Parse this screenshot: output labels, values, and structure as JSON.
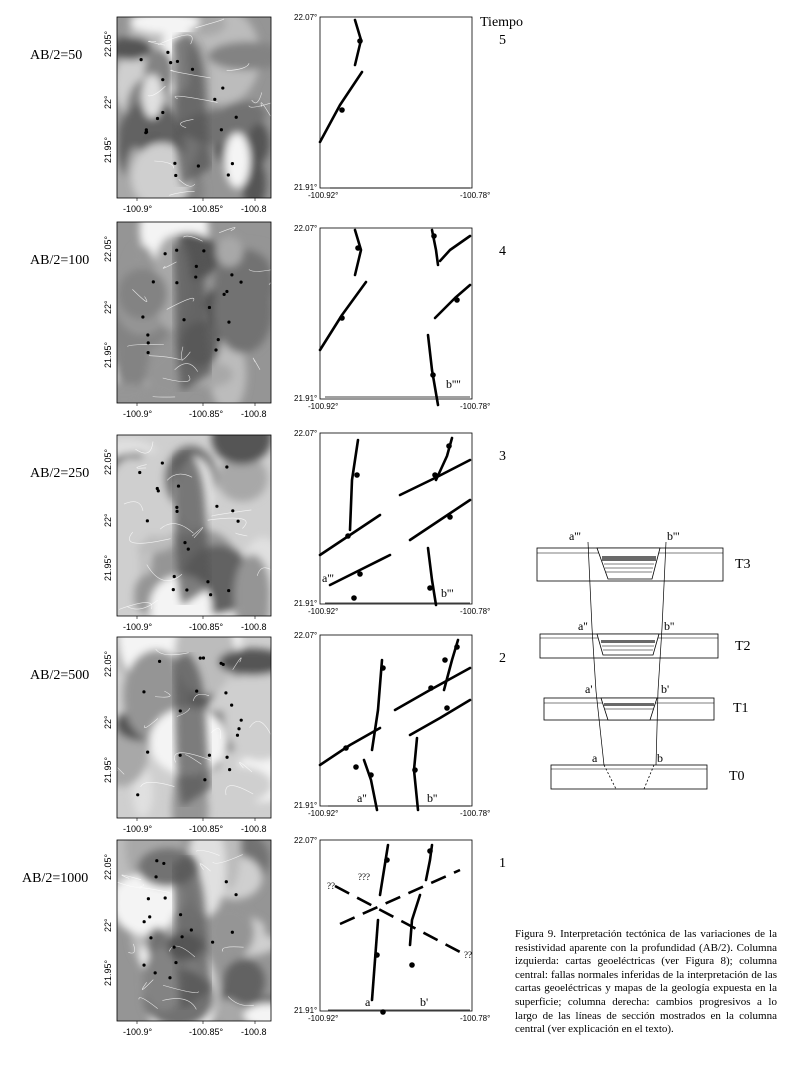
{
  "tiempo_label": "Tiempo",
  "ab_labels": [
    "AB/2=50",
    "AB/2=100",
    "AB/2=250",
    "AB/2=500",
    "AB/2=1000"
  ],
  "time_numbers": [
    "5",
    "4",
    "3",
    "2",
    "1"
  ],
  "map_axes": {
    "x_ticks": [
      "-100.9°",
      "-100.85°",
      "-100.8"
    ],
    "y_ticks": [
      "22.05°",
      "22°",
      "21.95°"
    ]
  },
  "fault_axes": {
    "lat_top": "22.07°",
    "lat_bottom": "21.91°",
    "lon_left": "-100.92°",
    "lon_right": "-100.78°"
  },
  "fault_panel_labels": {
    "panel_4_b": "b''''",
    "panel_3_a": "a'''",
    "panel_3_b": "b'''",
    "panel_2_a": "a''",
    "panel_2_b": "b''",
    "panel_1_a": "a'",
    "panel_1_b": "b'",
    "panel_1_q1": "??",
    "panel_1_q2": "???",
    "panel_1_q3": "??"
  },
  "sections": {
    "t3": {
      "a": "a'''",
      "b": "b'''",
      "label": "T3"
    },
    "t2": {
      "a": "a''",
      "b": "b''",
      "label": "T2"
    },
    "t1": {
      "a": "a'",
      "b": "b'",
      "label": "T1"
    },
    "t0": {
      "a": "a",
      "b": "b",
      "label": "T0"
    }
  },
  "caption": "Figura 9. Interpretación tectónica de las variaciones de la resistividad aparente con la profundidad (AB/2). Columna izquierda: cartas geoeléctricas (ver Figura 8); columna central: fallas normales inferidas de la interpretación de las cartas geoeléctricas y mapas de la geología expuesta en la superficie; columna derecha: cambios progresivos a lo largo de las líneas de sección mostrados en la columna central (ver explicación en el texto).",
  "colors": {
    "map_shades": [
      "#f4f4f4",
      "#e0e0e0",
      "#cfcfcf",
      "#bcbcbc",
      "#a8a8a8",
      "#959595",
      "#838383",
      "#727272",
      "#626262",
      "#545454"
    ],
    "line": "#000000"
  }
}
